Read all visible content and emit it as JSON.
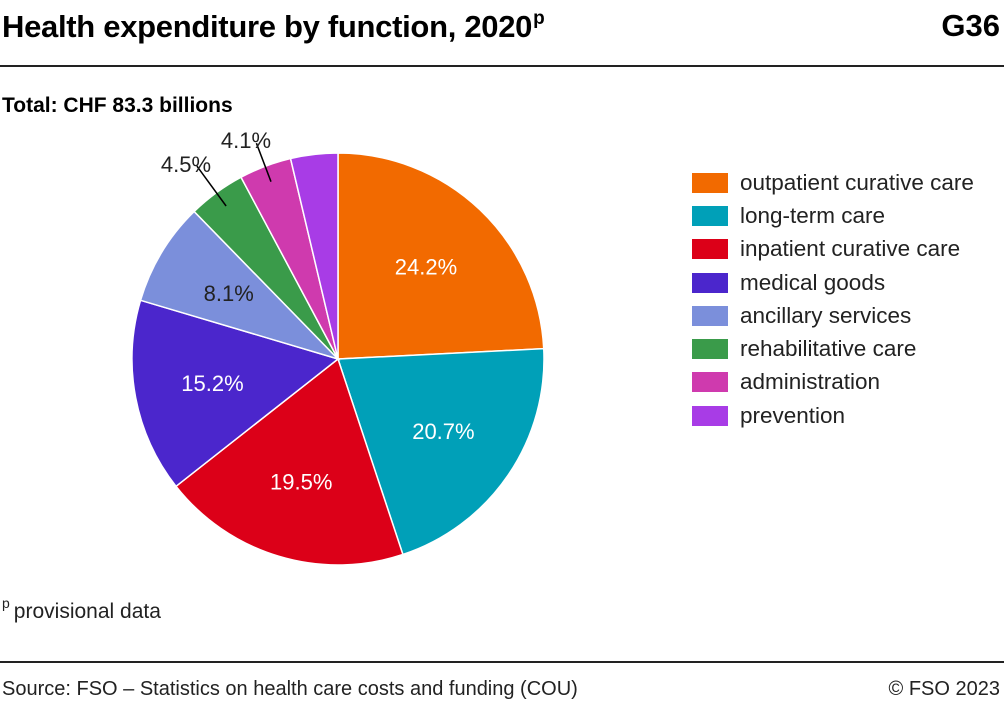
{
  "header": {
    "title": "Health expenditure by function, 2020",
    "title_sup": "p",
    "code": "G36"
  },
  "subtitle": "Total: CHF 83.3 billions",
  "footnote": {
    "marker": "p",
    "text": "provisional data"
  },
  "footer": {
    "source": "Source: FSO – Statistics on health care costs and funding (COU)",
    "copyright": "© FSO 2023"
  },
  "chart_data": {
    "type": "pie",
    "start": "12 o'clock",
    "direction": "clockwise",
    "legend_position": "right",
    "slices": [
      {
        "label": "outpatient curative care",
        "value": 24.2,
        "value_label": "24.2%",
        "color": "#f26a00",
        "label_inside": true
      },
      {
        "label": "long-term care",
        "value": 20.7,
        "value_label": "20.7%",
        "color": "#00a0b8",
        "label_inside": true
      },
      {
        "label": "inpatient curative care",
        "value": 19.5,
        "value_label": "19.5%",
        "color": "#dc0018",
        "label_inside": true
      },
      {
        "label": "medical goods",
        "value": 15.2,
        "value_label": "15.2%",
        "color": "#4b26cc",
        "label_inside": true
      },
      {
        "label": "ancillary services",
        "value": 8.1,
        "value_label": "8.1%",
        "color": "#7b8fdb",
        "label_inside": true
      },
      {
        "label": "rehabilitative care",
        "value": 4.5,
        "value_label": "4.5%",
        "color": "#3a9b4a",
        "label_inside": false
      },
      {
        "label": "administration",
        "value": 4.1,
        "value_label": "4.1%",
        "color": "#cf3aae",
        "label_inside": false
      },
      {
        "label": "prevention",
        "value": 3.7,
        "value_label": "",
        "color": "#a83ce6",
        "label_inside": false
      }
    ]
  }
}
